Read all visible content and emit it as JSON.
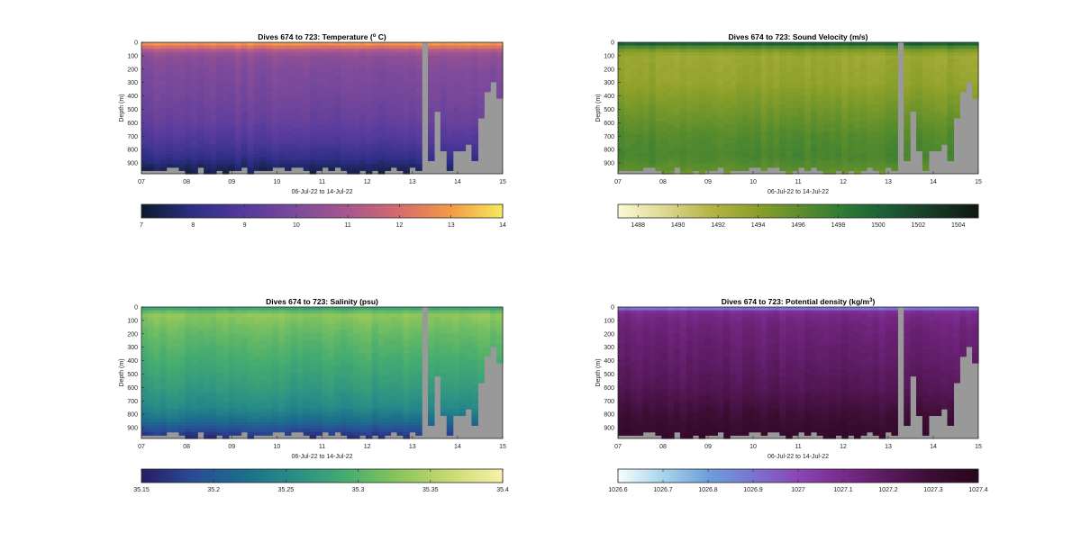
{
  "chart_data": [
    {
      "type": "heatmap",
      "title": "Dives 674 to 723: Temperature (",
      "title_sup": "o",
      "title_after": " C)",
      "xlabel": "06-Jul-22 to 14-Jul-22",
      "ylabel": "Depth (m)",
      "x_ticks": [
        "07",
        "08",
        "09",
        "10",
        "11",
        "12",
        "13",
        "14",
        "15"
      ],
      "y_ticks": [
        "0",
        "100",
        "200",
        "300",
        "400",
        "500",
        "600",
        "700",
        "800",
        "900"
      ],
      "xlim": [
        7,
        15
      ],
      "ylim": [
        0,
        980
      ],
      "colorbar": {
        "min": 7,
        "max": 14,
        "ticks": [
          "7",
          "8",
          "9",
          "10",
          "11",
          "12",
          "13",
          "14"
        ],
        "colors": [
          "#0d1a2e",
          "#2e2f87",
          "#553a9c",
          "#7d4a9b",
          "#a7578e",
          "#d66a6f",
          "#f39a44",
          "#f4e85c"
        ]
      },
      "profile": [
        [
          0,
          13.2
        ],
        [
          30,
          12.4
        ],
        [
          60,
          11.2
        ],
        [
          100,
          10.4
        ],
        [
          200,
          10.1
        ],
        [
          400,
          9.8
        ],
        [
          600,
          9.4
        ],
        [
          750,
          8.8
        ],
        [
          850,
          8.2
        ],
        [
          930,
          7.6
        ],
        [
          980,
          7.3
        ]
      ]
    },
    {
      "type": "heatmap",
      "title": "Dives 674 to 723: Sound Velocity (m/s)",
      "xlabel": "06-Jul-22 to 14-Jul-22",
      "ylabel": "Depth (m)",
      "x_ticks": [
        "07",
        "08",
        "09",
        "10",
        "11",
        "12",
        "13",
        "14",
        "15"
      ],
      "y_ticks": [
        "0",
        "100",
        "200",
        "300",
        "400",
        "500",
        "600",
        "700",
        "800",
        "900"
      ],
      "xlim": [
        7,
        15
      ],
      "ylim": [
        0,
        980
      ],
      "colorbar": {
        "min": 1487,
        "max": 1505,
        "ticks": [
          "1488",
          "1490",
          "1492",
          "1494",
          "1496",
          "1498",
          "1500",
          "1502",
          "1504"
        ],
        "colors": [
          "#fbf8d2",
          "#ddd993",
          "#b7b548",
          "#8ea12a",
          "#5e8e2c",
          "#2f7a35",
          "#1b5d36",
          "#173a25",
          "#0e1a12"
        ]
      },
      "profile": [
        [
          0,
          1502
        ],
        [
          20,
          1499
        ],
        [
          50,
          1495
        ],
        [
          100,
          1493
        ],
        [
          300,
          1493.5
        ],
        [
          500,
          1495
        ],
        [
          700,
          1496.5
        ],
        [
          850,
          1497
        ],
        [
          950,
          1496
        ],
        [
          980,
          1495
        ]
      ]
    },
    {
      "type": "heatmap",
      "title": "Dives 674 to 723: Salinity (psu)",
      "xlabel": "06-Jul-22 to 14-Jul-22",
      "ylabel": "Depth (m)",
      "x_ticks": [
        "07",
        "08",
        "09",
        "10",
        "11",
        "12",
        "13",
        "14",
        "15"
      ],
      "y_ticks": [
        "0",
        "100",
        "200",
        "300",
        "400",
        "500",
        "600",
        "700",
        "800",
        "900"
      ],
      "xlim": [
        7,
        15
      ],
      "ylim": [
        0,
        980
      ],
      "colorbar": {
        "min": 35.15,
        "max": 35.4,
        "ticks": [
          "35.15",
          "35.2",
          "35.25",
          "35.3",
          "35.35",
          "35.4"
        ],
        "colors": [
          "#281e66",
          "#2a4c96",
          "#1b6e8d",
          "#2a8f86",
          "#47ad6f",
          "#8ac55c",
          "#c9da71",
          "#f7f0a8"
        ]
      },
      "profile": [
        [
          0,
          35.26
        ],
        [
          20,
          35.3
        ],
        [
          60,
          35.33
        ],
        [
          200,
          35.31
        ],
        [
          400,
          35.29
        ],
        [
          600,
          35.27
        ],
        [
          750,
          35.25
        ],
        [
          850,
          35.22
        ],
        [
          930,
          35.18
        ],
        [
          980,
          35.16
        ]
      ]
    },
    {
      "type": "heatmap",
      "title": "Dives 674 to 723: Potential density (kg/m",
      "title_sup": "3",
      "title_after": ")",
      "xlabel": "06-Jul-22 to 14-Jul-22",
      "ylabel": "Depth (m)",
      "x_ticks": [
        "07",
        "08",
        "09",
        "10",
        "11",
        "12",
        "13",
        "14",
        "15"
      ],
      "y_ticks": [
        "0",
        "100",
        "200",
        "300",
        "400",
        "500",
        "600",
        "700",
        "800",
        "900"
      ],
      "xlim": [
        7,
        15
      ],
      "ylim": [
        0,
        980
      ],
      "colorbar": {
        "min": 1026.6,
        "max": 1027.4,
        "ticks": [
          "1026.6",
          "1026.7",
          "1026.8",
          "1026.9",
          "1027",
          "1027.1",
          "1027.2",
          "1027.3",
          "1027.4"
        ],
        "colors": [
          "#f4fbfd",
          "#a6d3ea",
          "#6c9fdb",
          "#7a73d1",
          "#8a46b4",
          "#7a2a8c",
          "#5a1a5e",
          "#3b0d32",
          "#2a0620"
        ]
      },
      "profile": [
        [
          0,
          1026.7
        ],
        [
          15,
          1026.95
        ],
        [
          40,
          1027.1
        ],
        [
          150,
          1027.14
        ],
        [
          400,
          1027.18
        ],
        [
          600,
          1027.22
        ],
        [
          750,
          1027.27
        ],
        [
          900,
          1027.32
        ],
        [
          980,
          1027.34
        ]
      ]
    }
  ],
  "colors": {
    "gap": "#999999",
    "axis": "#262626"
  }
}
